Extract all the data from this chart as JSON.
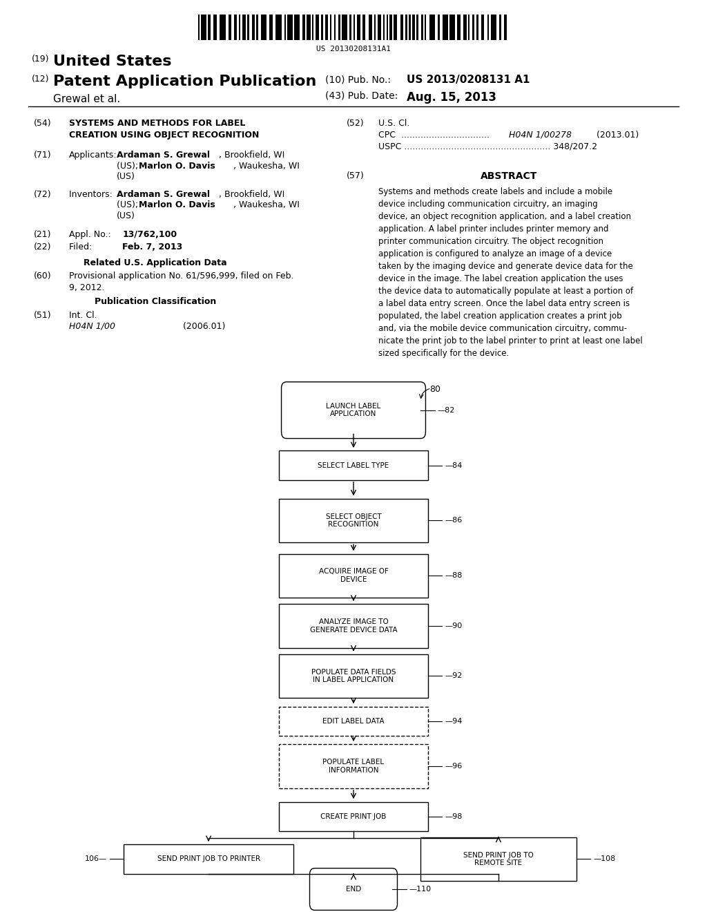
{
  "bg_color": "#ffffff",
  "barcode_text": "US 20130208131A1",
  "title_19": "(19)",
  "title_us": "United States",
  "title_12": "(12)",
  "title_pat": "Patent Application Publication",
  "pub_no_label": "(10) Pub. No.:",
  "pub_no_val": "US 2013/0208131 A1",
  "author": "Grewal et al.",
  "pub_date_label": "(43) Pub. Date:",
  "pub_date_val": "Aug. 15, 2013",
  "field54_title": "SYSTEMS AND METHODS FOR LABEL\nCREATION USING OBJECT RECOGNITION",
  "related_header": "Related U.S. Application Data",
  "pub_class_header": "Publication Classification",
  "abstract_header": "ABSTRACT",
  "abstract_text": "Systems and methods create labels and include a mobile\ndevice including communication circuitry, an imaging\ndevice, an object recognition application, and a label creation\napplication. A label printer includes printer memory and\nprinter communication circuitry. The object recognition\napplication is configured to analyze an image of a device\ntaken by the imaging device and generate device data for the\ndevice in the image. The label creation application the uses\nthe device data to automatically populate at least a portion of\na label data entry screen. Once the label data entry screen is\npopulated, the label creation application creates a print job\nand, via the mobile device communication circuitry, commu-\nnicate the print job to the label printer to print at least one label\nsized specifically for the device."
}
